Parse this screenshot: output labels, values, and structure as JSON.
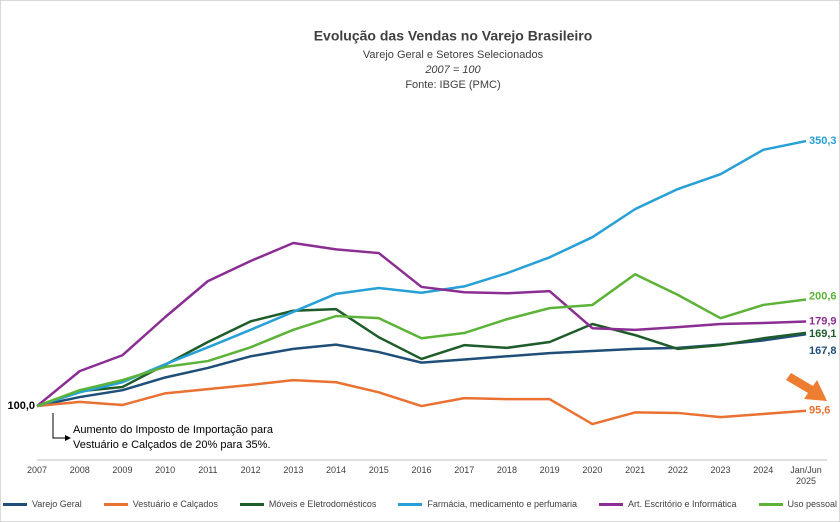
{
  "chart_data": {
    "type": "line",
    "title": "Evolução das Vendas no Varejo Brasileiro",
    "subtitle": "Varejo Geral e Setores Selecionados",
    "note": "2007 = 100",
    "source": "Fonte: IBGE (PMC)",
    "annotation": "Aumento do Imposto de Importação para Vestuário e Calçados de 20% para 35%.",
    "categories": [
      "2007",
      "2008",
      "2009",
      "2010",
      "2011",
      "2012",
      "2013",
      "2014",
      "2015",
      "2016",
      "2017",
      "2018",
      "2019",
      "2020",
      "2021",
      "2022",
      "2023",
      "2024",
      "Jan/Jun 2025"
    ],
    "ylim": [
      50,
      380
    ],
    "series": [
      {
        "name": "Varejo Geral",
        "color": "#1f4e79",
        "values": [
          100,
          108.5,
          115,
          127,
          136,
          147,
          154,
          158,
          151,
          141,
          144,
          147,
          150,
          152,
          154,
          155,
          158,
          162,
          167.8
        ],
        "value_labels": [
          "100,0",
          null,
          null,
          null,
          null,
          null,
          null,
          null,
          null,
          null,
          null,
          null,
          null,
          null,
          null,
          null,
          null,
          null,
          "167,8"
        ]
      },
      {
        "name": "Vestuário e Calçados",
        "color": "#e97132",
        "values": [
          100,
          104,
          101,
          112,
          116,
          120,
          124.5,
          122.5,
          113,
          100,
          107.5,
          106.5,
          106.5,
          83,
          94,
          93.5,
          89.5,
          92.5,
          95.6
        ],
        "value_labels": [
          null,
          null,
          null,
          null,
          null,
          null,
          null,
          null,
          null,
          null,
          null,
          null,
          null,
          null,
          null,
          null,
          null,
          null,
          "95,6"
        ]
      },
      {
        "name": "Móveis e Eletrodomésticos",
        "color": "#1e5c2a",
        "values": [
          100,
          114,
          118,
          139,
          160.5,
          180,
          190,
          191.5,
          165,
          144.5,
          157.5,
          155,
          160.5,
          177.5,
          167,
          154,
          157.5,
          164,
          169.1
        ],
        "value_labels": [
          null,
          null,
          null,
          null,
          null,
          null,
          null,
          null,
          null,
          null,
          null,
          null,
          null,
          null,
          null,
          null,
          null,
          null,
          "169,1"
        ]
      },
      {
        "name": "Farmácia, medicamento e perfumaria",
        "color": "#26a0d6",
        "values": [
          100,
          113,
          122.5,
          139.5,
          155.5,
          172,
          189,
          206,
          211.5,
          207,
          213,
          225.5,
          240.5,
          259.5,
          286,
          305,
          319,
          342,
          350.3
        ],
        "value_labels": [
          null,
          null,
          null,
          null,
          null,
          null,
          null,
          null,
          null,
          null,
          null,
          null,
          null,
          null,
          null,
          null,
          null,
          null,
          "350,3"
        ]
      },
      {
        "name": "Art. Escritório e Informática",
        "color": "#8b2e93",
        "values": [
          100,
          133,
          148,
          184,
          218,
          237,
          254,
          248,
          244.5,
          212.5,
          207.5,
          206.5,
          208.5,
          173.5,
          172,
          174.5,
          177.5,
          178.5,
          179.9
        ],
        "value_labels": [
          null,
          null,
          null,
          null,
          null,
          null,
          null,
          null,
          null,
          null,
          null,
          null,
          null,
          null,
          null,
          null,
          null,
          null,
          "179,9"
        ]
      },
      {
        "name": "Uso pessoal",
        "color": "#5cb338",
        "values": [
          100,
          115,
          124.5,
          137,
          142.5,
          155.5,
          172,
          185,
          183,
          164,
          169,
          182,
          192.5,
          195.5,
          224.5,
          205,
          183,
          195.5,
          200.6
        ],
        "value_labels": [
          null,
          null,
          null,
          null,
          null,
          null,
          null,
          null,
          null,
          null,
          null,
          null,
          null,
          null,
          null,
          null,
          null,
          null,
          "200,6"
        ]
      }
    ]
  }
}
